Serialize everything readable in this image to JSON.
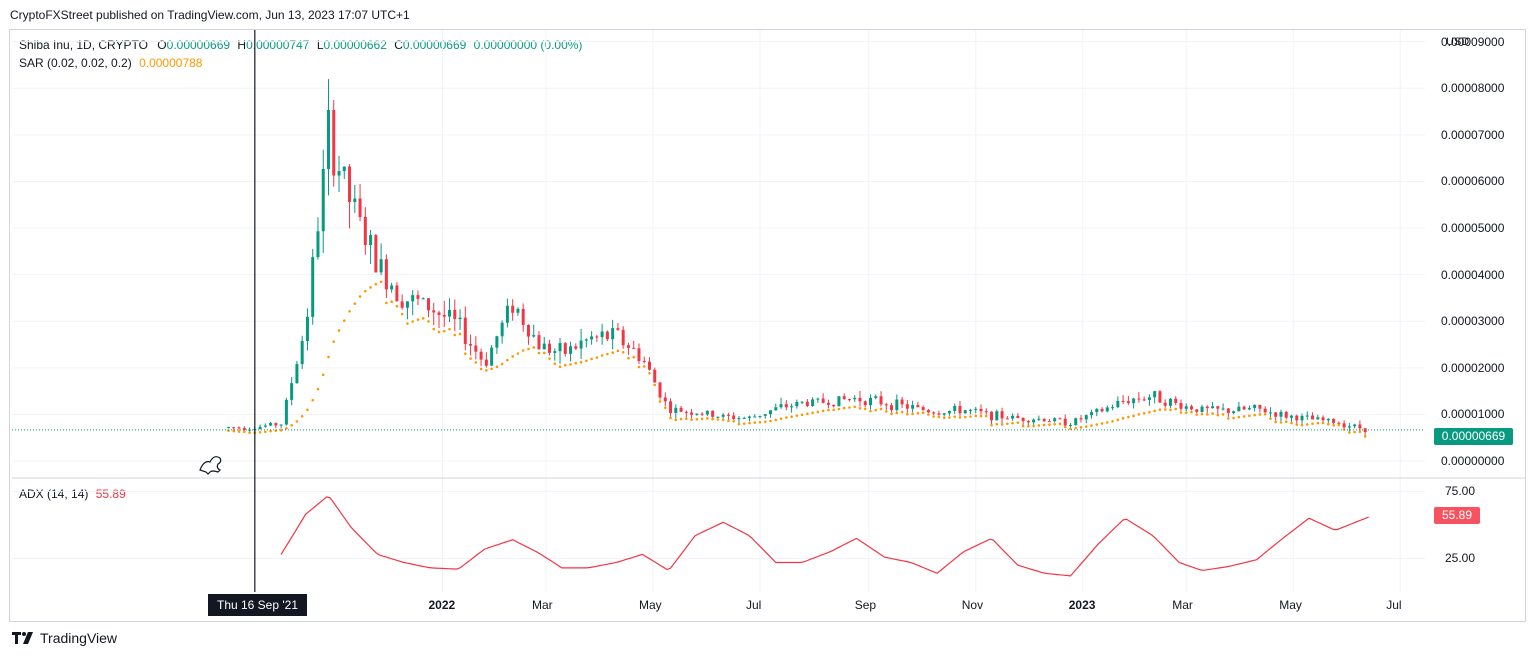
{
  "header": {
    "published": "CryptoFXStreet published on TradingView.com, Jun 13, 2023 17:07 UTC+1"
  },
  "legend": {
    "symbol": "Shiba Inu, 1D, CRYPTO",
    "o_label": "O",
    "o_value": "0.00000669",
    "h_label": "H",
    "h_value": "0.00000747",
    "l_label": "L",
    "l_value": "0.00000662",
    "c_label": "C",
    "c_value": "0.00000669",
    "change": "0.00000000 (0.00%)",
    "sar_label": "SAR (0.02, 0.02, 0.2)",
    "sar_value": "0.00000788",
    "adx_label": "ADX (14, 14)",
    "adx_value": "55.89"
  },
  "price_axis": {
    "currency": "USD",
    "ticks": [
      "0.00009000",
      "0.00008000",
      "0.00007000",
      "0.00006000",
      "0.00005000",
      "0.00004000",
      "0.00003000",
      "0.00002000",
      "0.00001000",
      "0.00000000"
    ],
    "last_price_tag": "0.00000669"
  },
  "adx_axis": {
    "ticks": [
      "75.00",
      "25.00"
    ],
    "last_value_tag": "55.89"
  },
  "time_axis": {
    "labels": [
      {
        "text": "2022",
        "bold": true
      },
      {
        "text": "Mar",
        "bold": false
      },
      {
        "text": "May",
        "bold": false
      },
      {
        "text": "Jul",
        "bold": false
      },
      {
        "text": "Sep",
        "bold": false
      },
      {
        "text": "Nov",
        "bold": false
      },
      {
        "text": "2023",
        "bold": true
      },
      {
        "text": "Mar",
        "bold": false
      },
      {
        "text": "May",
        "bold": false
      },
      {
        "text": "Jul",
        "bold": false
      }
    ],
    "crosshair_label": "Thu 16 Sep '21"
  },
  "footer": {
    "brand": "TradingView"
  },
  "colors": {
    "up": "#089981",
    "down": "#f23645",
    "sar": "#ff9800",
    "adx": "#f23645",
    "grid": "#f0f3fa"
  },
  "chart_data": [
    {
      "type": "candlestick",
      "title": "Shiba Inu, 1D, CRYPTO",
      "ylabel": "USD",
      "ylim": [
        0,
        9.5e-05
      ],
      "x": [
        "2021-09-01",
        "2021-09-15",
        "2021-10-01",
        "2021-10-15",
        "2021-10-28",
        "2021-11-10",
        "2021-11-25",
        "2021-12-10",
        "2021-12-25",
        "2022-01-10",
        "2022-01-25",
        "2022-02-10",
        "2022-02-25",
        "2022-03-10",
        "2022-03-25",
        "2022-04-10",
        "2022-04-25",
        "2022-05-10",
        "2022-05-25",
        "2022-06-10",
        "2022-06-25",
        "2022-07-10",
        "2022-07-25",
        "2022-08-10",
        "2022-08-25",
        "2022-09-10",
        "2022-09-25",
        "2022-10-10",
        "2022-10-25",
        "2022-11-10",
        "2022-11-25",
        "2022-12-10",
        "2022-12-25",
        "2023-01-10",
        "2023-01-25",
        "2023-02-10",
        "2023-02-25",
        "2023-03-10",
        "2023-03-25",
        "2023-04-10",
        "2023-04-25",
        "2023-05-10",
        "2023-05-25",
        "2023-06-13"
      ],
      "series": [
        {
          "name": "Close",
          "values": [
            7.2e-06,
            7.2e-06,
            8e-06,
            2.9e-05,
            7e-05,
            5.5e-05,
            4.2e-05,
            3.5e-05,
            3.3e-05,
            2.9e-05,
            2.1e-05,
            3.4e-05,
            2.5e-05,
            2.3e-05,
            2.6e-05,
            2.7e-05,
            2.2e-05,
            1.1e-05,
            1.05e-05,
            9.5e-06,
            9.2e-06,
            1.12e-05,
            1.25e-05,
            1.28e-05,
            1.35e-05,
            1.25e-05,
            1.15e-05,
            1.05e-05,
            1.1e-05,
            9.8e-06,
            9.2e-06,
            9e-06,
            8.2e-06,
            1.05e-05,
            1.3e-05,
            1.4e-05,
            1.2e-05,
            1.1e-05,
            1.08e-05,
            1.12e-05,
            9.8e-06,
            9e-06,
            8.4e-06,
            6.69e-06
          ]
        }
      ]
    },
    {
      "type": "line",
      "title": "ADX (14, 14)",
      "ylim": [
        0,
        80
      ],
      "x": [
        "2021-09-01",
        "2021-09-15",
        "2021-10-01",
        "2021-10-15",
        "2021-10-28",
        "2021-11-10",
        "2021-11-25",
        "2021-12-10",
        "2021-12-25",
        "2022-01-10",
        "2022-01-25",
        "2022-02-10",
        "2022-02-25",
        "2022-03-10",
        "2022-03-25",
        "2022-04-10",
        "2022-04-25",
        "2022-05-10",
        "2022-05-25",
        "2022-06-10",
        "2022-06-25",
        "2022-07-10",
        "2022-07-25",
        "2022-08-10",
        "2022-08-25",
        "2022-09-10",
        "2022-09-25",
        "2022-10-10",
        "2022-10-25",
        "2022-11-10",
        "2022-11-25",
        "2022-12-10",
        "2022-12-25",
        "2023-01-10",
        "2023-01-25",
        "2023-02-10",
        "2023-02-25",
        "2023-03-10",
        "2023-03-25",
        "2023-04-10",
        "2023-04-25",
        "2023-05-10",
        "2023-05-25",
        "2023-06-13"
      ],
      "series": [
        {
          "name": "ADX",
          "values": [
            null,
            null,
            28,
            58,
            72,
            48,
            28,
            22,
            18,
            17,
            32,
            39,
            29,
            18,
            18,
            22,
            28,
            16,
            42,
            52,
            42,
            22,
            22,
            30,
            40,
            26,
            22,
            14,
            30,
            40,
            20,
            14,
            12,
            36,
            55,
            42,
            22,
            16,
            19,
            24,
            40,
            55,
            46,
            55.89
          ]
        }
      ]
    }
  ]
}
